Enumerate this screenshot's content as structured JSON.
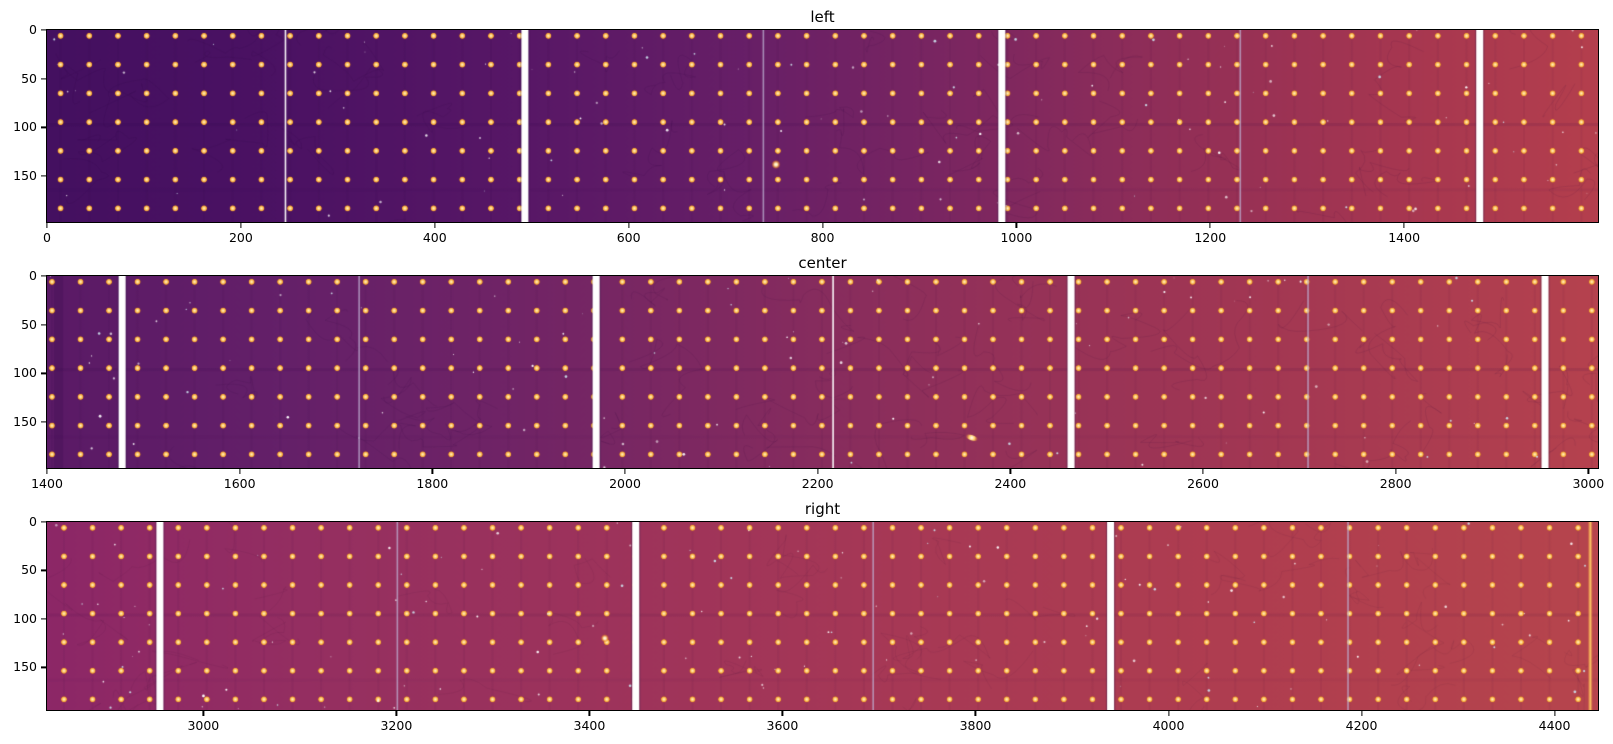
{
  "figure": {
    "background": "#ffffff",
    "description": "Three-panel detector mosaic image with calibration dot grid and chip-gap stripes"
  },
  "chart_data": [
    {
      "type": "heatmap",
      "title": "left",
      "xlim": [
        0,
        1600
      ],
      "ylim": [
        0,
        197
      ],
      "xticks": [
        0,
        200,
        400,
        600,
        800,
        1000,
        1200,
        1400
      ],
      "yticks": [
        0,
        50,
        100,
        150
      ],
      "legend": "none",
      "grid": false,
      "colormap": "magma-like, dark purple to crimson left-to-right",
      "gradient": [
        [
          0.0,
          "#441060"
        ],
        [
          0.15,
          "#4b1263"
        ],
        [
          0.3,
          "#571766"
        ],
        [
          0.45,
          "#671f67"
        ],
        [
          0.6,
          "#7d2760"
        ],
        [
          0.75,
          "#953056"
        ],
        [
          0.88,
          "#a73750"
        ],
        [
          1.0,
          "#b43f4d"
        ]
      ],
      "stripes": [
        {
          "x": 246,
          "style": "bright"
        },
        {
          "x": 493,
          "style": "wide"
        },
        {
          "x": 739,
          "style": "faint"
        },
        {
          "x": 985,
          "style": "wide"
        },
        {
          "x": 1231,
          "style": "faint"
        },
        {
          "x": 1478,
          "style": "wide"
        }
      ],
      "dot_grid": {
        "x_start": 14,
        "x_spacing": 29.6,
        "y_start": 6,
        "y_spacing": 29.5,
        "rows": 7,
        "radius": 3.4,
        "colors": [
          "#fff3cf",
          "#ffd077",
          "#f29f2f"
        ]
      },
      "artifacts": [
        {
          "type": "blob",
          "x": 752,
          "y": 138,
          "r": 4.6
        }
      ],
      "noise": {
        "seed": 11,
        "speckles": 95,
        "squiggles": 45,
        "squiggle_color": "rgba(30,4,50,0.12)",
        "grid_line_color": "rgba(35,0,65,0.05)",
        "dark_bands": [
          {
            "y": 97,
            "alpha": 0.1
          },
          {
            "y": 164,
            "alpha": 0.05
          }
        ]
      }
    },
    {
      "type": "heatmap",
      "title": "center",
      "xlim": [
        1400,
        3010
      ],
      "ylim": [
        0,
        197
      ],
      "xticks": [
        1400,
        1600,
        1800,
        2000,
        2200,
        2400,
        2600,
        2800,
        3000
      ],
      "yticks": [
        0,
        50,
        100,
        150
      ],
      "legend": "none",
      "grid": false,
      "colormap": "magma-like, dark purple to crimson left-to-right",
      "gradient": [
        [
          0.0,
          "#5a1a66"
        ],
        [
          0.15,
          "#642069"
        ],
        [
          0.3,
          "#702466"
        ],
        [
          0.45,
          "#812a60"
        ],
        [
          0.6,
          "#933159"
        ],
        [
          0.78,
          "#a23753"
        ],
        [
          1.0,
          "#b5424e"
        ]
      ],
      "stripes": [
        {
          "x": 1478,
          "style": "wide"
        },
        {
          "x": 1724,
          "style": "faint"
        },
        {
          "x": 1970,
          "style": "wide"
        },
        {
          "x": 2216,
          "style": "bright"
        },
        {
          "x": 2463,
          "style": "wide"
        },
        {
          "x": 2709,
          "style": "faint"
        },
        {
          "x": 2955,
          "style": "wide"
        }
      ],
      "dot_grid": {
        "x_start": 14,
        "x_spacing": 29.6,
        "y_start": 6,
        "y_spacing": 29.5,
        "rows": 7,
        "radius": 3.4,
        "colors": [
          "#fff3cf",
          "#ffd077",
          "#f29f2f"
        ]
      },
      "artifacts": [
        {
          "type": "dark-column",
          "x": 1412,
          "w": 9,
          "alpha": 0.14
        },
        {
          "type": "streak",
          "x": 2360,
          "y": 166,
          "w": 6.5,
          "h": 2.6,
          "angle": 18
        }
      ],
      "noise": {
        "seed": 22,
        "speckles": 85,
        "squiggles": 45,
        "squiggle_color": "rgba(30,4,50,0.12)",
        "grid_line_color": "rgba(35,0,65,0.05)",
        "dark_bands": [
          {
            "y": 96,
            "alpha": 0.1
          },
          {
            "y": 165,
            "alpha": 0.04
          }
        ]
      }
    },
    {
      "type": "heatmap",
      "title": "right",
      "xlim": [
        2838,
        4445
      ],
      "ylim": [
        0,
        194
      ],
      "xticks": [
        3000,
        3200,
        3400,
        3600,
        3800,
        4000,
        4200,
        4400
      ],
      "yticks": [
        0,
        50,
        100,
        150
      ],
      "legend": "none",
      "grid": false,
      "colormap": "magma-like, magenta to crimson left-to-right",
      "gradient": [
        [
          0.0,
          "#8c2767"
        ],
        [
          0.2,
          "#963060"
        ],
        [
          0.4,
          "#9f345a"
        ],
        [
          0.6,
          "#a93a54"
        ],
        [
          0.8,
          "#b03e4f"
        ],
        [
          1.0,
          "#b6454d"
        ]
      ],
      "stripes": [
        {
          "x": 2955,
          "style": "wide"
        },
        {
          "x": 3201,
          "style": "faint"
        },
        {
          "x": 3448,
          "style": "wide"
        },
        {
          "x": 3694,
          "style": "faint"
        },
        {
          "x": 3940,
          "style": "wide"
        },
        {
          "x": 4186,
          "style": "faint"
        },
        {
          "x": 4437,
          "style": "saturated"
        }
      ],
      "dot_grid": {
        "x_start": 14,
        "x_spacing": 29.6,
        "y_start": 6,
        "y_spacing": 29.5,
        "rows": 7,
        "radius": 3.4,
        "colors": [
          "#fff3cf",
          "#ffd077",
          "#f29f2f"
        ]
      },
      "artifacts": [
        {
          "type": "blob",
          "x": 3416,
          "y": 120,
          "r": 4.2
        }
      ],
      "noise": {
        "seed": 33,
        "speckles": 115,
        "squiggles": 40,
        "squiggle_color": "rgba(45,8,45,0.10)",
        "grid_line_color": "rgba(40,0,60,0.05)",
        "dark_bands": [
          {
            "y": 96,
            "alpha": 0.08
          },
          {
            "y": 163,
            "alpha": 0.04
          }
        ]
      }
    }
  ]
}
